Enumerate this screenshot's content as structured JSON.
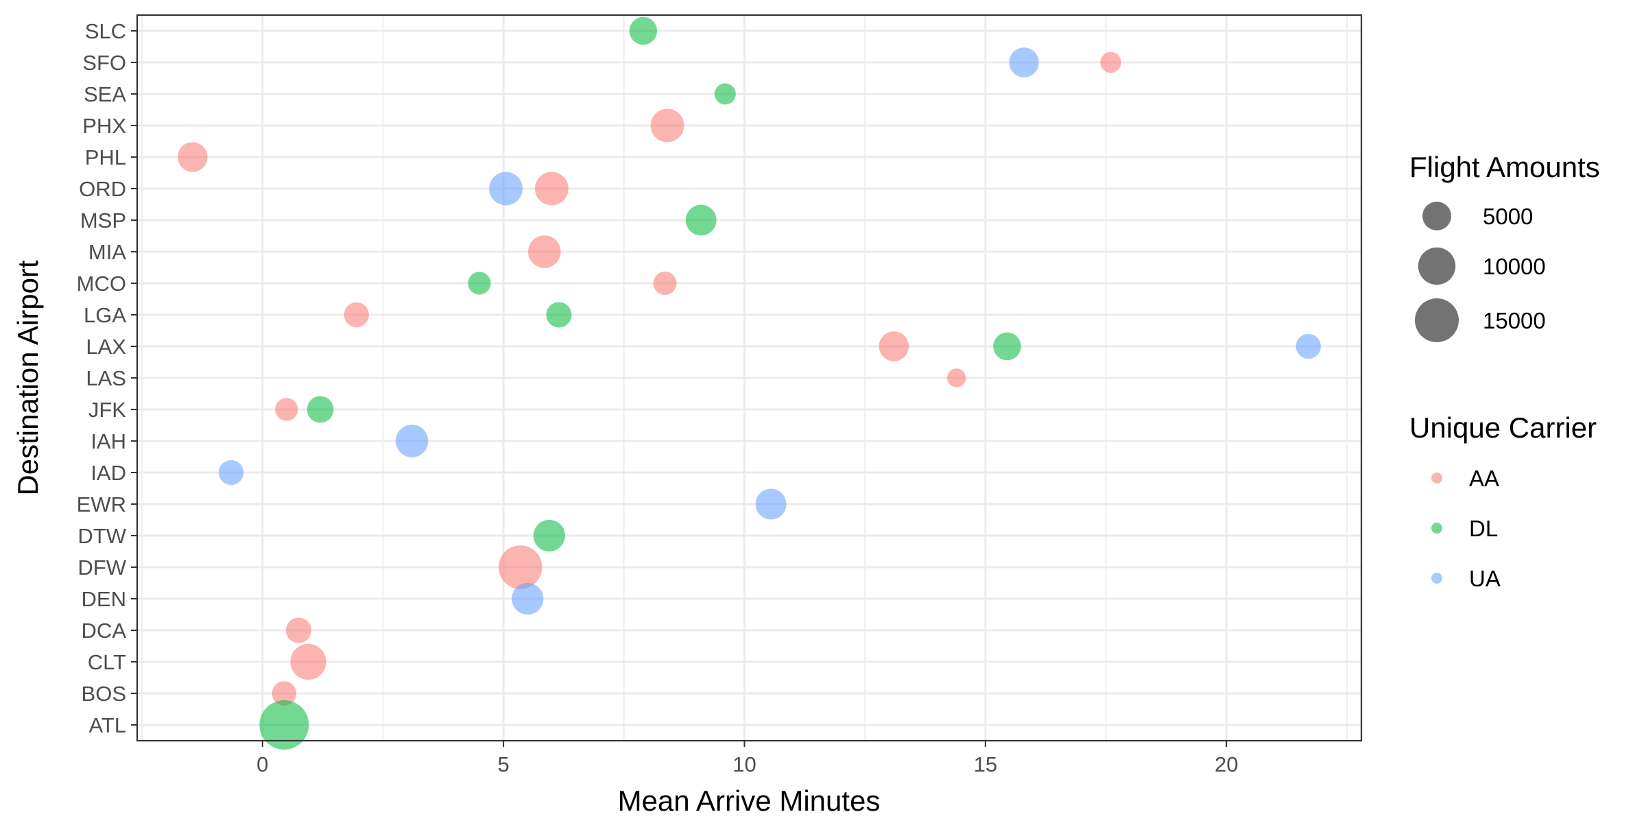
{
  "chart_data": {
    "type": "scatter",
    "xlabel": "Mean Arrive Minutes",
    "ylabel": "Destination Airport",
    "xlim": [
      -2.6,
      22.8
    ],
    "x_ticks": [
      0,
      5,
      10,
      15,
      20
    ],
    "x_tick_labels": [
      "0",
      "5",
      "10",
      "15",
      "20"
    ],
    "categories": [
      "ATL",
      "BOS",
      "CLT",
      "DCA",
      "DEN",
      "DFW",
      "DTW",
      "EWR",
      "IAD",
      "IAH",
      "JFK",
      "LAS",
      "LAX",
      "LGA",
      "MCO",
      "MIA",
      "MSP",
      "ORD",
      "PHL",
      "PHX",
      "SEA",
      "SFO",
      "SLC"
    ],
    "grid": true,
    "size_legend": {
      "title": "Flight Amounts",
      "values": [
        5000,
        10000,
        15000
      ],
      "labels": [
        "5000",
        "10000",
        "15000"
      ]
    },
    "color_legend": {
      "title": "Unique Carrier",
      "placement": "right"
    },
    "series": [
      {
        "name": "AA",
        "color": "#F8766D",
        "points": [
          {
            "airport": "BOS",
            "x": 0.45,
            "flights": 3100
          },
          {
            "airport": "CLT",
            "x": 0.95,
            "flights": 9000
          },
          {
            "airport": "DCA",
            "x": 0.75,
            "flights": 3500
          },
          {
            "airport": "DFW",
            "x": 5.35,
            "flights": 14800
          },
          {
            "airport": "JFK",
            "x": 0.5,
            "flights": 2500
          },
          {
            "airport": "LAS",
            "x": 14.4,
            "flights": 1300
          },
          {
            "airport": "LAX",
            "x": 13.1,
            "flights": 5500
          },
          {
            "airport": "LGA",
            "x": 1.95,
            "flights": 3300
          },
          {
            "airport": "MCO",
            "x": 8.35,
            "flights": 2700
          },
          {
            "airport": "MIA",
            "x": 5.85,
            "flights": 7000
          },
          {
            "airport": "ORD",
            "x": 6.0,
            "flights": 7500
          },
          {
            "airport": "PHL",
            "x": -1.45,
            "flights": 5500
          },
          {
            "airport": "PHX",
            "x": 8.4,
            "flights": 7500
          },
          {
            "airport": "SFO",
            "x": 17.6,
            "flights": 1900
          }
        ]
      },
      {
        "name": "DL",
        "color": "#00BA38",
        "points": [
          {
            "airport": "ATL",
            "x": 0.45,
            "flights": 20000
          },
          {
            "airport": "DTW",
            "x": 5.95,
            "flights": 6500
          },
          {
            "airport": "JFK",
            "x": 1.2,
            "flights": 4000
          },
          {
            "airport": "LAX",
            "x": 15.45,
            "flights": 4500
          },
          {
            "airport": "LGA",
            "x": 6.15,
            "flights": 3500
          },
          {
            "airport": "MCO",
            "x": 4.5,
            "flights": 2500
          },
          {
            "airport": "MSP",
            "x": 9.1,
            "flights": 6000
          },
          {
            "airport": "SEA",
            "x": 9.6,
            "flights": 2000
          },
          {
            "airport": "SLC",
            "x": 7.9,
            "flights": 4500
          }
        ]
      },
      {
        "name": "UA",
        "color": "#619CFF",
        "points": [
          {
            "airport": "DEN",
            "x": 5.5,
            "flights": 6500
          },
          {
            "airport": "EWR",
            "x": 10.55,
            "flights": 6000
          },
          {
            "airport": "IAD",
            "x": -0.65,
            "flights": 3300
          },
          {
            "airport": "IAH",
            "x": 3.1,
            "flights": 7000
          },
          {
            "airport": "LAX",
            "x": 21.7,
            "flights": 3300
          },
          {
            "airport": "ORD",
            "x": 5.05,
            "flights": 7500
          },
          {
            "airport": "SFO",
            "x": 15.8,
            "flights": 5500
          }
        ]
      }
    ]
  }
}
